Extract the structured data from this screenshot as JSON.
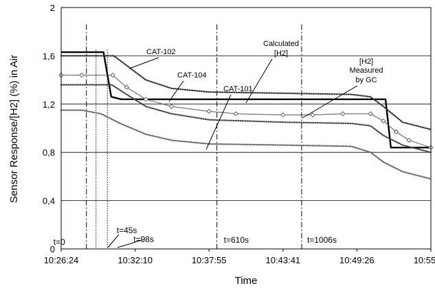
{
  "chart_data": {
    "type": "line",
    "xlabel": "Time",
    "ylabel": "Sensor Response/[H2] (%) in Air",
    "xlim": [
      "10:26:24",
      "10:55:12"
    ],
    "ylim": [
      0,
      2
    ],
    "grid": "horizontal",
    "x_ticks": [
      "10:26:24",
      "10:32:10",
      "10:37:55",
      "10:43:41",
      "10:49:26",
      "10:55:12"
    ],
    "y_ticks": [
      "0",
      "0,4",
      "0,8",
      "1,2",
      "1,6",
      "2"
    ],
    "series": [
      {
        "name": "Calculated [H2]",
        "style": "thick-line",
        "color": "#000000",
        "x": [
          "10:26:24",
          "10:29:42",
          "10:30:18",
          "10:31:05",
          "10:35:00",
          "10:40:00",
          "10:45:00",
          "10:50:00",
          "10:51:40",
          "10:52:05",
          "10:55:12"
        ],
        "y": [
          1.63,
          1.63,
          1.26,
          1.24,
          1.24,
          1.24,
          1.24,
          1.24,
          1.24,
          0.84,
          0.84
        ]
      },
      {
        "name": "CAT-102",
        "style": "dotted",
        "color": "#333333",
        "x": [
          "10:26:24",
          "10:30:30",
          "10:31:30",
          "10:33:00",
          "10:35:00",
          "10:37:55",
          "10:43:41",
          "10:49:00",
          "10:50:30",
          "10:51:30",
          "10:53:00",
          "10:55:12"
        ],
        "y": [
          1.6,
          1.6,
          1.52,
          1.4,
          1.33,
          1.3,
          1.29,
          1.28,
          1.26,
          1.18,
          1.05,
          0.99
        ]
      },
      {
        "name": "[H2] Measured by GC",
        "style": "diamond-line",
        "color": "#555555",
        "x": [
          "10:26:24",
          "10:28:00",
          "10:30:25",
          "10:31:30",
          "10:33:00",
          "10:35:00",
          "10:37:55",
          "10:40:00",
          "10:43:41",
          "10:46:00",
          "10:48:20",
          "10:50:30",
          "10:51:30",
          "10:52:30",
          "10:53:30",
          "10:55:12"
        ],
        "y": [
          1.44,
          1.44,
          1.44,
          1.34,
          1.24,
          1.18,
          1.14,
          1.12,
          1.11,
          1.11,
          1.12,
          1.12,
          1.06,
          0.97,
          0.9,
          0.84
        ]
      },
      {
        "name": "CAT-104",
        "style": "dotted",
        "color": "#444444",
        "x": [
          "10:26:24",
          "10:30:20",
          "10:31:30",
          "10:33:00",
          "10:35:00",
          "10:37:55",
          "10:43:41",
          "10:49:00",
          "10:50:30",
          "10:51:30",
          "10:53:00",
          "10:55:12"
        ],
        "y": [
          1.36,
          1.36,
          1.28,
          1.18,
          1.12,
          1.07,
          1.05,
          1.04,
          1.02,
          0.94,
          0.86,
          0.8
        ]
      },
      {
        "name": "CAT-101",
        "style": "dotted",
        "color": "#666666",
        "x": [
          "10:26:24",
          "10:28:00",
          "10:29:30",
          "10:31:00",
          "10:33:00",
          "10:35:00",
          "10:37:55",
          "10:43:41",
          "10:49:00",
          "10:50:30",
          "10:51:30",
          "10:53:00",
          "10:55:12"
        ],
        "y": [
          1.15,
          1.15,
          1.12,
          1.04,
          0.95,
          0.9,
          0.87,
          0.86,
          0.85,
          0.8,
          0.72,
          0.64,
          0.58
        ]
      }
    ],
    "event_lines": [
      {
        "time": "10:28:22",
        "label": "t=0",
        "style": "dashdot"
      },
      {
        "time": "10:29:07",
        "label": "t=45s",
        "style": "dotted"
      },
      {
        "time": "10:30:00",
        "label": "t=98s",
        "style": "dotted"
      },
      {
        "time": "10:38:32",
        "label": "t=610s",
        "style": "dashdot"
      },
      {
        "time": "10:45:08",
        "label": "t=1006s",
        "style": "dashdot"
      }
    ],
    "annotations": [
      "CAT-102",
      "CAT-104",
      "CAT-101",
      "Calculated",
      "[H2]",
      "[H2]",
      "Measured",
      "by GC"
    ]
  }
}
